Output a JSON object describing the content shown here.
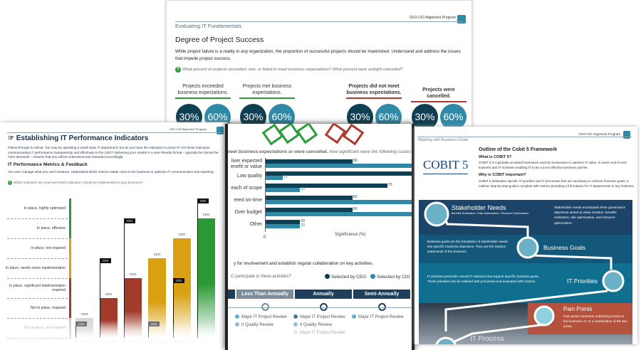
{
  "program_label": "CEO-CIO Alignment Program",
  "top_page": {
    "section": "Evaluating IT Fundamentals",
    "title": "Degree of Project Success",
    "body": "While project failure is a reality in any organization, the proportion of successful projects should be maximized. Understand and address the issues that impede project success.",
    "question": "What percent of projects exceeded, met, or failed to meet business expectations? What percent were outright cancelled?",
    "columns": [
      {
        "label": "Projects exceeded business expectations.",
        "ceo": "30%",
        "cio": "60%",
        "color": "#2a9d3a"
      },
      {
        "label": "Projects met business expectations.",
        "ceo": "30%",
        "cio": "60%",
        "color": "#2a9d3a"
      },
      {
        "label": "Projects did not meet business expectations.",
        "ceo": "30%",
        "cio": "60%",
        "color": "#b03a2e"
      },
      {
        "label": "Projects were cancelled.",
        "ceo": "30%",
        "cio": "60%",
        "color": "#b03a2e"
      }
    ]
  },
  "left_page": {
    "title": "Establishing IT Performance Indicators",
    "body": "Follow-through is critical. You may be operating a world-class IT department, but do you have the indicators to prove it? Are these indicators communicating IT performance transparently and effectively to the CEO? Delivering your results in a user-friendly format – typically the format the CEO demands – ensures that you will be understood and rewarded accordingly.",
    "subtitle": "IT Performance Metrics & Feedback",
    "sub_body": "You can't manage what you can't measure. Understand which metrics matter most to the business to optimize IT communication and reporting.",
    "question": "Which indicators are used and which indicators should be implemented in your business?"
  },
  "chart_data": [
    {
      "type": "bar",
      "levels": [
        "Not in place, not required",
        "Not in place, required",
        "In place, significant implimentation required",
        "In place, needs some implimentation",
        "In place, not required",
        "In place, effective",
        "In place, highly optimized"
      ],
      "level_colors": [
        "#cccccc",
        "#a33b2c",
        "#a33b2c",
        "#d9a011",
        "#d9a011",
        "#2b9a35",
        "#2b9a35"
      ],
      "categories": [
        "Business Value",
        "Stakeholder",
        "Risk",
        "Cost & Safety",
        "Technology",
        "All"
      ],
      "series": [
        {
          "name": "CEO",
          "values": [
            1,
            2,
            3,
            4,
            5,
            6
          ]
        },
        {
          "name": "CIO",
          "values": [
            1,
            4,
            6,
            1,
            3,
            7
          ]
        }
      ]
    },
    {
      "type": "bar",
      "question_bold": "meet business expectations or were cancelled,",
      "question_rest": " how significant were the following issues?",
      "categories": [
        "Failed to deliver expected benefit or value",
        "Low quality",
        "Breach of scope",
        "Not delivered on-time",
        "Over budget",
        "Other"
      ],
      "category_visible": [
        "liver expected\nenefit or value",
        "Low quality",
        "each of scope",
        "ered on-time",
        "Over budget",
        "Other"
      ],
      "series": [
        {
          "name": "Selected by CEO",
          "values": [
            50,
            90,
            70,
            50,
            50,
            20
          ],
          "color": "#0e3f52"
        },
        {
          "name": "Selected by CIO",
          "values": [
            90,
            10,
            20,
            90,
            90,
            20
          ],
          "color": "#2f8aa8"
        }
      ],
      "value_labels_shown_below": 80,
      "xlabel": "Significance (%)",
      "x_tick": "0",
      "xlim": [
        0,
        100
      ]
    }
  ],
  "middle_page": {
    "text": "y for involvement and establish regular collaboration on key activities.",
    "question": "O participate in these activities?",
    "legend": [
      {
        "label": "Selected by CEO",
        "color": "#0e3f52"
      },
      {
        "label": "Selected by CIO",
        "color": "#2f8aa8"
      }
    ],
    "timeline": [
      {
        "label": "Less Than Annually",
        "items": [
          {
            "t": "Major IT Project Review",
            "c": "#5fb3cc"
          },
          {
            "t": "It Quality Review",
            "c": "#9ab8c6"
          }
        ]
      },
      {
        "label": "Annually",
        "items": [
          {
            "t": "Major IT Project Review",
            "c": "#4a7a8c"
          },
          {
            "t": "It Quality Review",
            "c": "#8ec3d3"
          },
          {
            "t": "Major IT Project Review",
            "c": "#c5d6dd"
          }
        ]
      },
      {
        "label": "Semi-Annually",
        "items": [
          {
            "t": "Major IT Project Review",
            "c": "#5fb3cc"
          }
        ]
      }
    ]
  },
  "right_page": {
    "section": "Aligning with Business Goals",
    "logo": "COBIT 5",
    "title": "Outline of the Cobit 5 Framework",
    "q1": "What is COBIT 5?",
    "a1": "COBIT 5 is a globally-accepted framework used by businesses to optimize IT value. It covers end-to-end business and IT activities enabling IT to be a more effective business partner.",
    "q2": "Why is COBIT important?",
    "a2": "COBIT 5 delineates specific IT priorities and IT processes that are necessary to achieve business goals. It outlines step-by-step guides complete with metrics providing a full solution for IT departments in any business.",
    "stakeholder": {
      "title": "Stakeholder Needs",
      "sub": "Benefits Realization • Risk Optimization • Resource Optimization",
      "desc": "Stakeholder needs encompass three governance objectives aimed at value creation: benefits realization, risk optimization, and resource optimization."
    },
    "business_goals": {
      "title": "Business Goals",
      "desc": "Business goals are the translation of stakeholder needs into specific business objectives. They are the mission statements of the business."
    },
    "it_priorities": {
      "title": "IT Priorities",
      "desc": "IT priorities prescribe overall IT missions that support specific business goals. These priorities can be realized with processes and evaluated with metrics."
    },
    "pain_points": {
      "title": "Pain Points",
      "desc": "Pain points represent underlying issues in the business, IT, or a combination of the two areas."
    },
    "it_process": {
      "title": "IT Process"
    }
  }
}
